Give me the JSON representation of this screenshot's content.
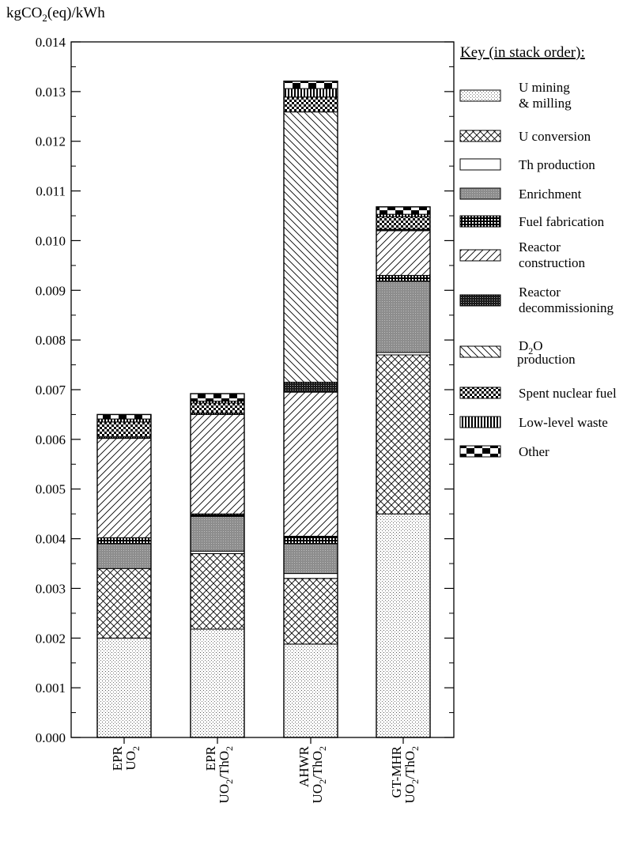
{
  "chart_data": {
    "type": "bar",
    "stacked": true,
    "ylabel_main": "kgCO",
    "ylabel_sub": "2",
    "ylabel_tail": "(eq)/kWh",
    "ylim": [
      0,
      0.014
    ],
    "y_ticks": [
      "0.000",
      "0.001",
      "0.002",
      "0.003",
      "0.004",
      "0.005",
      "0.006",
      "0.007",
      "0.008",
      "0.009",
      "0.010",
      "0.011",
      "0.012",
      "0.013",
      "0.014"
    ],
    "categories": [
      {
        "line1": "EPR",
        "line2": "UO",
        "line2_sub": "2",
        "line2_tail": ""
      },
      {
        "line1": "EPR",
        "line2": "UO",
        "line2_sub": "2",
        "line2_tail": "/ThO",
        "line2_tail_sub": "2"
      },
      {
        "line1": "AHWR",
        "line2": "UO",
        "line2_sub": "2",
        "line2_tail": "/ThO",
        "line2_tail_sub": "2"
      },
      {
        "line1": "GT-MHR",
        "line2": "UO",
        "line2_sub": "2",
        "line2_tail": "/ThO",
        "line2_tail_sub": "2"
      }
    ],
    "legend_title": "Key (in stack order):",
    "legend_position": "right",
    "series": [
      {
        "name": "U mining & milling",
        "legend_lines": [
          "U mining",
          "& milling"
        ],
        "pattern": "dots",
        "values": [
          0.002,
          0.00218,
          0.00188,
          0.0045
        ]
      },
      {
        "name": "U conversion",
        "legend_lines": [
          "U conversion"
        ],
        "pattern": "crosshatch",
        "values": [
          0.0014,
          0.00152,
          0.00132,
          0.0032
        ]
      },
      {
        "name": "Th production",
        "legend_lines": [
          "Th production"
        ],
        "pattern": "solid",
        "values": [
          0.0,
          5e-05,
          0.0001,
          5e-05
        ]
      },
      {
        "name": "Enrichment",
        "legend_lines": [
          "Enrichment"
        ],
        "pattern": "gray",
        "values": [
          0.0005,
          0.0007,
          0.0006,
          0.00143
        ]
      },
      {
        "name": "Fuel fabrication",
        "legend_lines": [
          "Fuel fabrication"
        ],
        "pattern": "fabric",
        "values": [
          0.00012,
          5e-05,
          0.00015,
          0.00012
        ]
      },
      {
        "name": "Reactor construction",
        "legend_lines": [
          "Reactor",
          "construction"
        ],
        "pattern": "diag",
        "values": [
          0.002,
          0.002,
          0.0029,
          0.0009
        ]
      },
      {
        "name": "Reactor decommissioning",
        "legend_lines": [
          "Reactor",
          "decommissioning"
        ],
        "pattern": "darkdots",
        "values": [
          3e-05,
          3e-05,
          0.0002,
          3e-05
        ]
      },
      {
        "name": "D2O production",
        "legend_lines": [
          "D",
          "2",
          "O",
          "production"
        ],
        "pattern": "backdiag",
        "values": [
          0.0,
          0.0,
          0.00544,
          0.0
        ]
      },
      {
        "name": "Spent nuclear fuel",
        "legend_lines": [
          "Spent nuclear fuel"
        ],
        "pattern": "checker",
        "values": [
          0.0003,
          0.0002,
          0.0003,
          0.00025
        ]
      },
      {
        "name": "Low-level waste",
        "legend_lines": [
          "Low-level waste"
        ],
        "pattern": "vlines",
        "values": [
          6e-05,
          4e-05,
          0.00017,
          5e-05
        ]
      },
      {
        "name": "Other",
        "legend_lines": [
          "Other"
        ],
        "pattern": "bigcheck",
        "values": [
          9e-05,
          0.00015,
          0.00015,
          0.00015
        ]
      }
    ]
  }
}
